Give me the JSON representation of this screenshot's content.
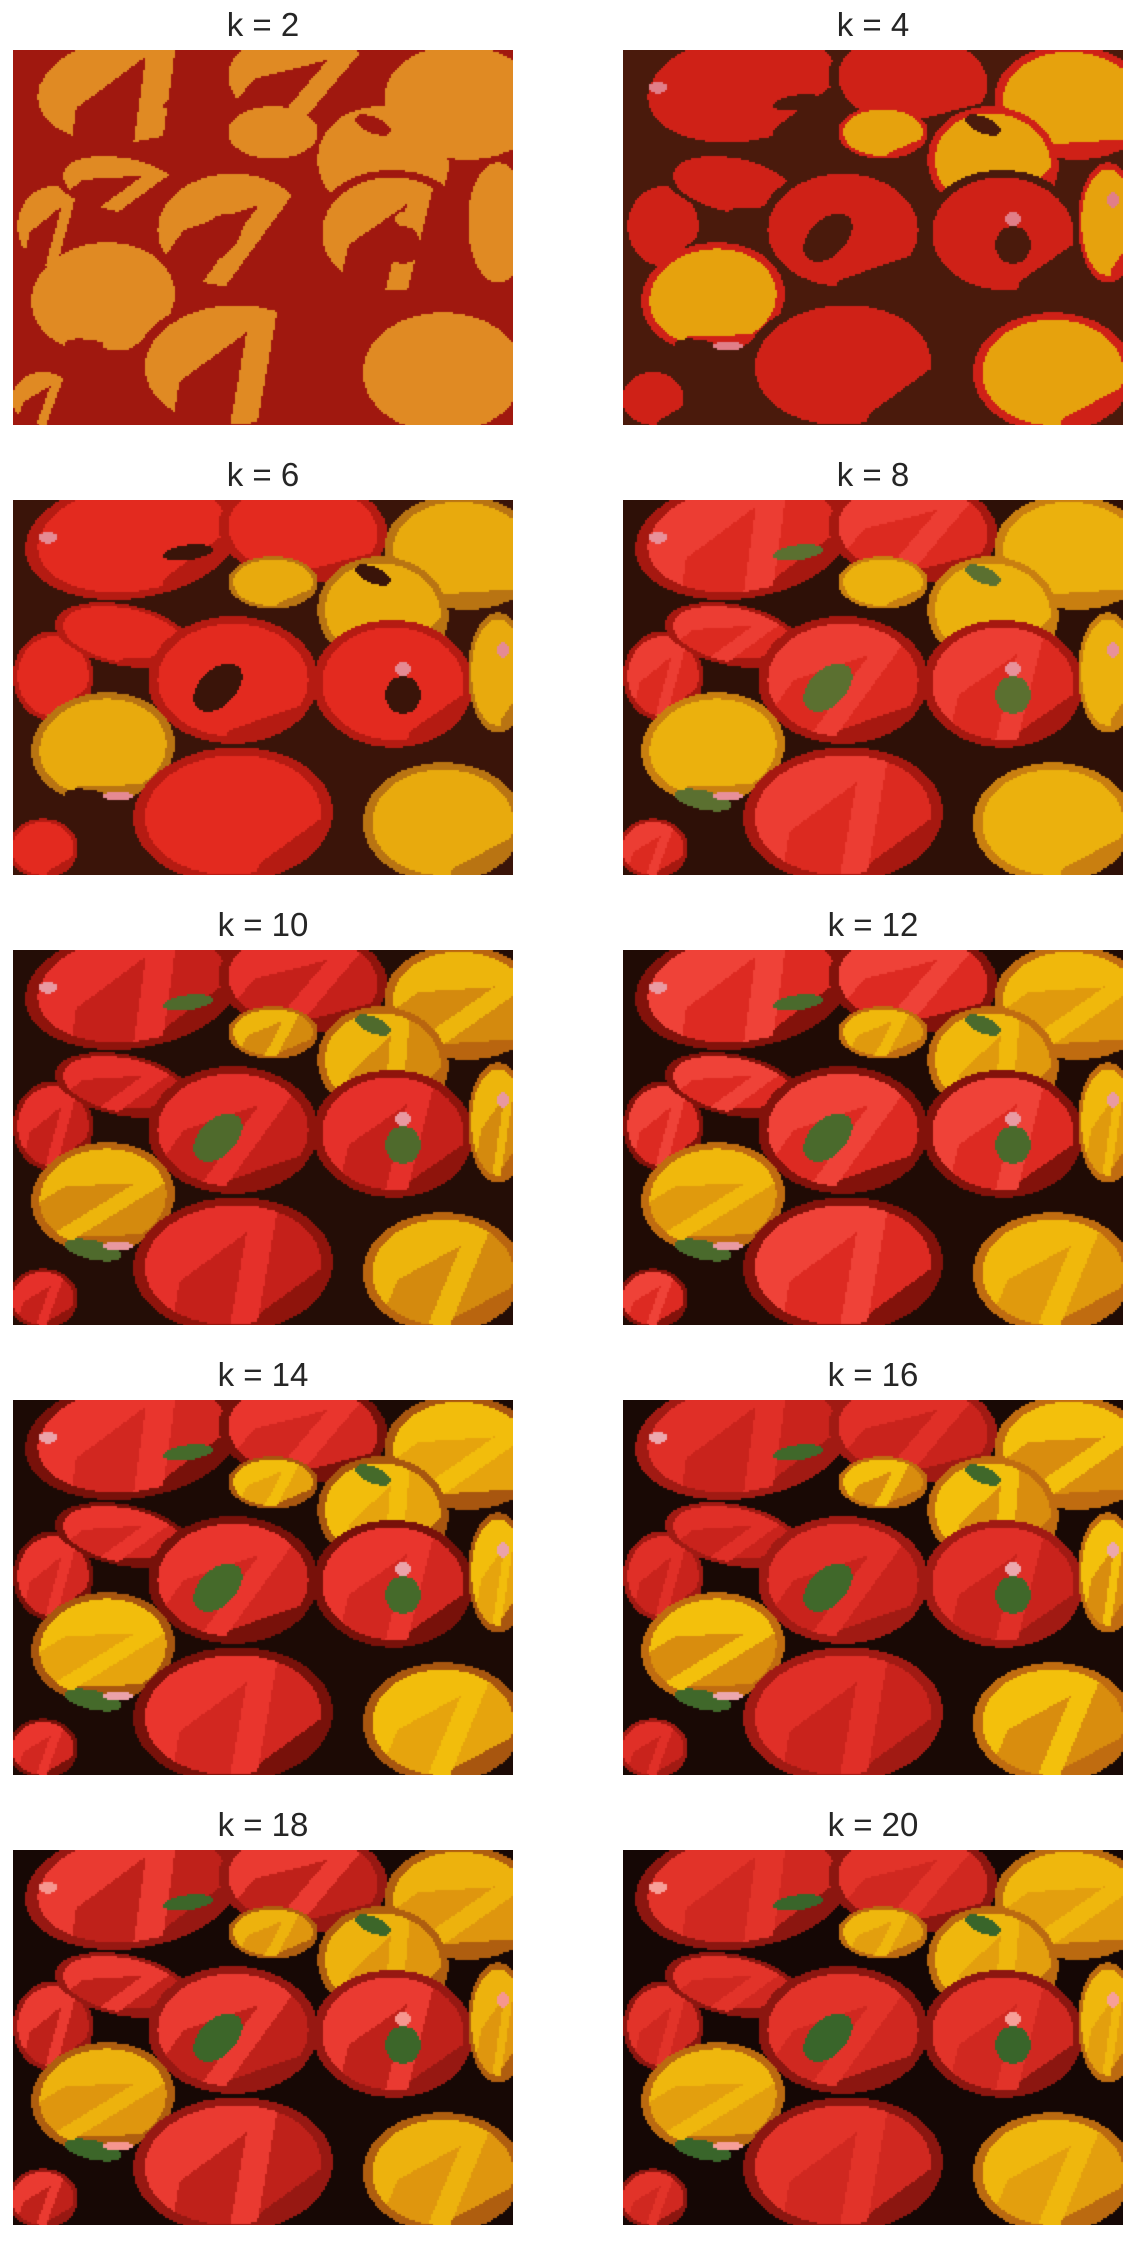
{
  "figure": {
    "panels": [
      {
        "title": "k = 2",
        "k": 2,
        "palette": [
          "#a0180f",
          "#e08a23"
        ]
      },
      {
        "title": "k = 4",
        "k": 4,
        "palette": [
          "#4a1a0c",
          "#cf2117",
          "#e6a20d",
          "#e17e88"
        ]
      },
      {
        "title": "k = 6",
        "k": 6,
        "palette": [
          "#3a1409",
          "#b51b12",
          "#e32a1f",
          "#e8aa0d",
          "#b97412",
          "#e58a93"
        ]
      },
      {
        "title": "k = 8",
        "k": 8,
        "palette": [
          "#2e1007",
          "#a61810",
          "#dc2a20",
          "#ec3d33",
          "#ebb10d",
          "#c97f10",
          "#5b7030",
          "#e8909a"
        ]
      },
      {
        "title": "k = 10",
        "k": 10,
        "palette": [
          "#240d06",
          "#8f140c",
          "#c5201a",
          "#e5302a",
          "#f05b52",
          "#edb50c",
          "#d48a0e",
          "#b9650f",
          "#4f6a2c",
          "#e898a0"
        ]
      },
      {
        "title": "k = 12",
        "k": 12,
        "palette": [
          "#200b05",
          "#83120b",
          "#b81e17",
          "#dd2a22",
          "#ef4238",
          "#f37066",
          "#f0b80c",
          "#e09a0d",
          "#c06c10",
          "#4a6a2c",
          "#7b8a3e",
          "#e99aa2"
        ]
      },
      {
        "title": "k = 14",
        "k": 14,
        "palette": [
          "#1c0a05",
          "#78110a",
          "#ad1c15",
          "#d22720",
          "#e9352d",
          "#f25047",
          "#f47e76",
          "#f2bd0c",
          "#e6a40d",
          "#cd7d0f",
          "#a8560f",
          "#456a2a",
          "#7f8f40",
          "#eba2a9"
        ]
      },
      {
        "title": "k = 16",
        "k": 16,
        "palette": [
          "#190905",
          "#6e0f09",
          "#a11a13",
          "#c9231c",
          "#e02f27",
          "#ee4037",
          "#f3594f",
          "#f58a82",
          "#f3c00c",
          "#eaab0d",
          "#d98d0e",
          "#c06c10",
          "#9c4c0e",
          "#40682a",
          "#7b8c3f",
          "#eca7ad"
        ]
      },
      {
        "title": "k = 18",
        "k": 18,
        "palette": [
          "#170805",
          "#640e08",
          "#971812",
          "#bf211a",
          "#d92b23",
          "#ea3a31",
          "#f14a41",
          "#f5675e",
          "#f6968f",
          "#f4c20c",
          "#edb20d",
          "#df960e",
          "#ca7b0f",
          "#af5e0f",
          "#8e440d",
          "#3c6629",
          "#768b3e",
          "#edaab0"
        ]
      },
      {
        "title": "k = 20",
        "k": 20,
        "palette": [
          "#150705",
          "#5b0c07",
          "#8c1610",
          "#b41f18",
          "#d02820",
          "#e23329",
          "#ee4036",
          "#f3534a",
          "#f66f67",
          "#f79f98",
          "#f5c50c",
          "#efb70d",
          "#e39f0e",
          "#d2850f",
          "#bb6a10",
          "#9b4e0e",
          "#803b0b",
          "#39652a",
          "#718a3d",
          "#eeadb3"
        ]
      }
    ]
  }
}
